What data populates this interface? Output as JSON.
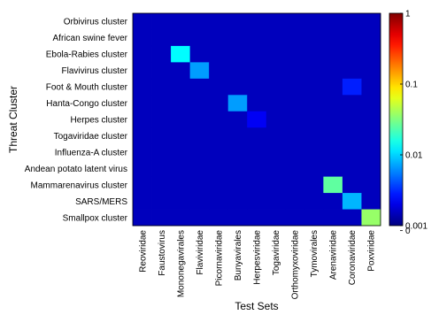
{
  "chart_data": {
    "type": "heatmap",
    "title": "",
    "xlabel": "Test Sets",
    "ylabel": "Threat Cluster",
    "x_categories": [
      "Reoviridae",
      "Faustovirus",
      "Mononegavirales",
      "Flaviviridae",
      "Picornaviridae",
      "Bunyavirales",
      "Herpesviridae",
      "Togaviridae",
      "Orthomyxoviridae",
      "Tymovirales",
      "Arenaviridae",
      "Coronaviridae",
      "Poxviridae"
    ],
    "y_categories": [
      "Orbivirus cluster",
      "African swine fever",
      "Ebola-Rabies cluster",
      "Flavivirus cluster",
      "Foot & Mouth cluster",
      "Hanta-Congo cluster",
      "Herpes cluster",
      "Togaviridae cluster",
      "Influenza-A cluster",
      "Andean potato latent virus",
      "Mammarenavirus cluster",
      "SARS/MERS",
      "Smallpox cluster"
    ],
    "values": [
      [
        0,
        0,
        0,
        0,
        0,
        0,
        0,
        0,
        0,
        0,
        0,
        0,
        0
      ],
      [
        0,
        0,
        0,
        0,
        0,
        0,
        0,
        0,
        0,
        0,
        0,
        0,
        0
      ],
      [
        0,
        0,
        0.01,
        0,
        0,
        0,
        0,
        0,
        0,
        0,
        0,
        0,
        0
      ],
      [
        0,
        0,
        0,
        0.005,
        0,
        0,
        0,
        0,
        0,
        0,
        0,
        0,
        0
      ],
      [
        0,
        0,
        0,
        0,
        0,
        0,
        0,
        0,
        0,
        0,
        0,
        0.002,
        0
      ],
      [
        0,
        0,
        0,
        0,
        0,
        0.005,
        0,
        0,
        0,
        0,
        0,
        0,
        0
      ],
      [
        0,
        0,
        0,
        0,
        0,
        0,
        0.0015,
        0,
        0,
        0,
        0,
        0,
        0
      ],
      [
        0,
        0,
        0,
        0,
        0,
        0,
        0,
        0,
        0,
        0,
        0,
        0,
        0
      ],
      [
        0,
        0,
        0,
        0,
        0,
        0,
        0,
        0,
        0,
        0,
        0,
        0,
        0
      ],
      [
        0,
        0,
        0,
        0,
        0,
        0,
        0,
        0,
        0,
        0,
        0,
        0,
        0
      ],
      [
        0,
        0,
        0,
        0,
        0,
        0,
        0,
        0,
        0,
        0,
        0.02,
        0,
        0
      ],
      [
        0,
        0,
        0,
        0,
        0,
        0,
        0,
        0,
        0,
        0,
        0,
        0.006,
        0
      ],
      [
        0,
        0,
        0,
        0,
        0,
        0,
        0,
        0,
        0,
        0,
        0,
        0,
        0.03
      ]
    ],
    "colorbar": {
      "scale": "log",
      "range": [
        0.001,
        1
      ],
      "ticks": [
        {
          "value": 1,
          "label": "1"
        },
        {
          "value": 0.1,
          "label": "0.1"
        },
        {
          "value": 0.01,
          "label": "0.01"
        },
        {
          "value": 0.001,
          "label": "0.001"
        },
        {
          "value": 0.00085,
          "label": "0"
        }
      ],
      "colormap": "jet"
    },
    "grid": false,
    "legend": "colorbar-right"
  }
}
